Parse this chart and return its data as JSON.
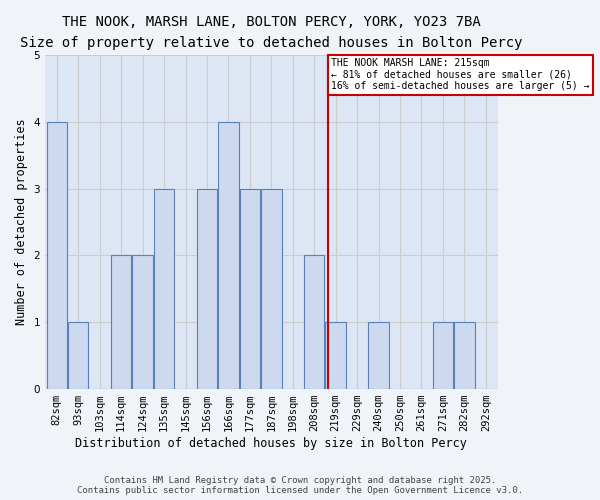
{
  "title": "THE NOOK, MARSH LANE, BOLTON PERCY, YORK, YO23 7BA",
  "subtitle": "Size of property relative to detached houses in Bolton Percy",
  "xlabel": "Distribution of detached houses by size in Bolton Percy",
  "ylabel": "Number of detached properties",
  "footer_line1": "Contains HM Land Registry data © Crown copyright and database right 2025.",
  "footer_line2": "Contains public sector information licensed under the Open Government Licence v3.0.",
  "bins": [
    82,
    93,
    103,
    114,
    124,
    135,
    145,
    156,
    166,
    177,
    187,
    198,
    208,
    219,
    229,
    240,
    250,
    261,
    271,
    282,
    292
  ],
  "bar_heights": [
    4,
    1,
    0,
    2,
    2,
    3,
    0,
    3,
    4,
    3,
    3,
    0,
    2,
    1,
    0,
    1,
    0,
    0,
    1,
    1,
    0
  ],
  "bar_color": "#ccd9ee",
  "bar_edge_color": "#5a82b8",
  "grid_color": "#cccccc",
  "bg_color": "#dce6f5",
  "vline_color": "#cc0000",
  "vline_index": 13.4,
  "annotation_text": "THE NOOK MARSH LANE: 215sqm\n← 81% of detached houses are smaller (26)\n16% of semi-detached houses are larger (5) →",
  "annotation_box_color": "#cc0000",
  "ylim": [
    0,
    5
  ],
  "yticks": [
    0,
    1,
    2,
    3,
    4,
    5
  ],
  "title_fontsize": 10,
  "subtitle_fontsize": 9,
  "label_fontsize": 8.5,
  "tick_fontsize": 7.5,
  "footer_fontsize": 6.5
}
